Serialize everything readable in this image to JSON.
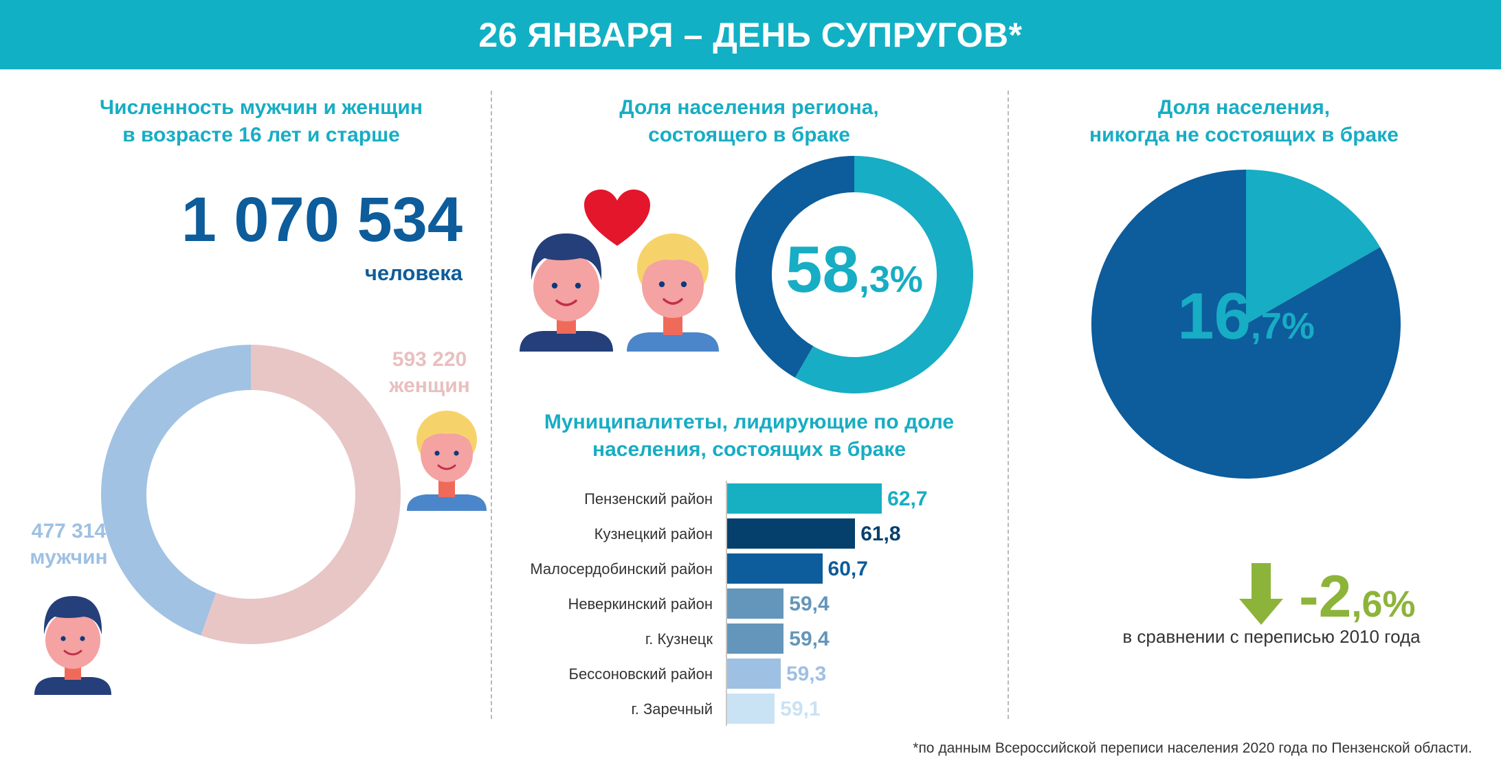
{
  "header": {
    "title": "26 ЯНВАРЯ – ДЕНЬ СУПРУГОВ*"
  },
  "left": {
    "title_line1": "Численность мужчин и женщин",
    "title_line2": "в возрасте 16 лет и старше",
    "total": "1 070 534",
    "total_unit": "человека",
    "women_value": "593 220",
    "women_label": "женщин",
    "men_value": "477 314",
    "men_label": "мужчин"
  },
  "middle": {
    "title_line1": "Доля населения региона,",
    "title_line2": "состоящего в браке",
    "married_int": "58",
    "married_dec": ",3%",
    "bars_title_line1": "Муниципалитеты, лидирующие по доле",
    "bars_title_line2": "населения, состоящих в браке"
  },
  "right": {
    "title_line1": "Доля населения,",
    "title_line2": "никогда не состоящих в браке",
    "never_int": "16",
    "never_dec": ",7%",
    "change_int": "-2",
    "change_dec": ",6%",
    "change_note": "в сравнении с переписью 2010 года"
  },
  "footnote": "*по данным Всероссийской переписи населения 2020 года по Пензенской области.",
  "colors": {
    "teal": "#17adc4",
    "navy": "#0d5c9b",
    "dark_navy": "#05406d",
    "pink_ring": "#e8c6c6",
    "blue_ring": "#a1c2e3",
    "green": "#8db43a",
    "heart": "#e3162c"
  },
  "icons": {
    "men_icon": "man-avatar-icon",
    "women_icon": "woman-avatar-icon",
    "heart_icon": "heart-icon",
    "arrow_icon": "arrow-down-icon"
  },
  "chart_data": [
    {
      "type": "pie",
      "subtype": "donut",
      "labels": [
        "женщин",
        "мужчин"
      ],
      "values": [
        593220,
        477314
      ],
      "colors": [
        "#e8c6c6",
        "#a1c2e3"
      ]
    },
    {
      "type": "pie",
      "subtype": "donut",
      "values": [
        58.3,
        41.7
      ],
      "colors": [
        "#17adc4",
        "#0d5c9b"
      ]
    },
    {
      "type": "bar",
      "orientation": "horizontal",
      "categories": [
        "Пензенский район",
        "Кузнецкий район",
        "Малосердобинский район",
        "Неверкинский район",
        "г. Кузнецк",
        "Бессоновский район",
        "г. Заречный"
      ],
      "values": [
        62.7,
        61.8,
        60.7,
        59.4,
        59.4,
        59.3,
        59.1
      ],
      "value_labels": [
        "62,7",
        "61,8",
        "60,7",
        "59,4",
        "59,4",
        "59,3",
        "59,1"
      ],
      "colors": [
        "#17b0c2",
        "#05406d",
        "#0d5c9b",
        "#6396ba",
        "#6396ba",
        "#9ec0e2",
        "#c9e2f4"
      ],
      "label_colors": [
        "#17adc4",
        "#05406d",
        "#0d5c9b",
        "#6396ba",
        "#6396ba",
        "#9ec0e2",
        "#c9e2f4"
      ]
    },
    {
      "type": "pie",
      "subtype": "donut",
      "values": [
        16.7,
        83.3
      ],
      "colors": [
        "#17adc4",
        "#0d5c9b"
      ]
    }
  ]
}
